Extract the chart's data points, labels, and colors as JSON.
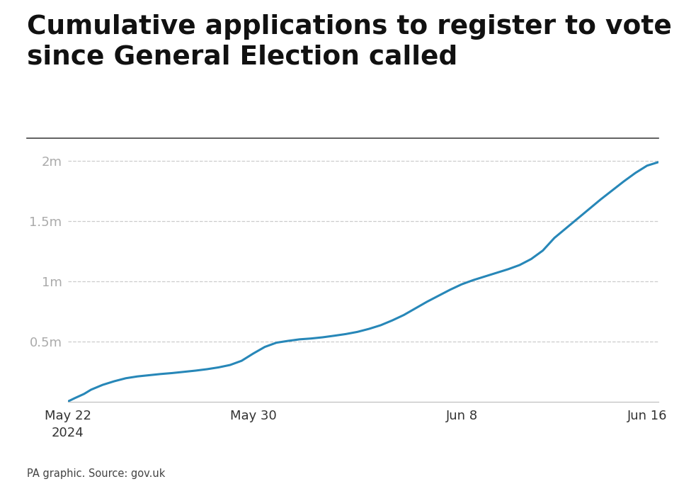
{
  "title": "Cumulative applications to register to vote\nsince General Election called",
  "source_text": "PA graphic. Source: gov.uk",
  "line_color": "#2787b8",
  "background_color": "#ffffff",
  "title_fontsize": 27,
  "title_fontweight": "bold",
  "ytick_labels": [
    "0.5m",
    "1m",
    "1.5m",
    "2m"
  ],
  "ytick_values": [
    500000,
    1000000,
    1500000,
    2000000
  ],
  "ylim": [
    0,
    2150000
  ],
  "xlim": [
    0,
    25.5
  ],
  "x_tick_labels": [
    "May 22\n2024",
    "May 30",
    "Jun 8",
    "Jun 16"
  ],
  "x_tick_positions": [
    0,
    8,
    17,
    25
  ],
  "data_points": [
    [
      0,
      2000
    ],
    [
      0.3,
      30000
    ],
    [
      0.7,
      65000
    ],
    [
      1.0,
      100000
    ],
    [
      1.5,
      140000
    ],
    [
      2.0,
      170000
    ],
    [
      2.5,
      195000
    ],
    [
      3.0,
      210000
    ],
    [
      3.5,
      220000
    ],
    [
      4.0,
      230000
    ],
    [
      4.5,
      238000
    ],
    [
      5.0,
      248000
    ],
    [
      5.5,
      258000
    ],
    [
      6.0,
      270000
    ],
    [
      6.5,
      285000
    ],
    [
      7.0,
      305000
    ],
    [
      7.5,
      340000
    ],
    [
      8.0,
      400000
    ],
    [
      8.5,
      455000
    ],
    [
      9.0,
      490000
    ],
    [
      9.5,
      505000
    ],
    [
      10.0,
      518000
    ],
    [
      10.5,
      525000
    ],
    [
      11.0,
      535000
    ],
    [
      11.5,
      548000
    ],
    [
      12.0,
      562000
    ],
    [
      12.5,
      580000
    ],
    [
      13.0,
      605000
    ],
    [
      13.5,
      635000
    ],
    [
      14.0,
      675000
    ],
    [
      14.5,
      720000
    ],
    [
      15.0,
      775000
    ],
    [
      15.5,
      830000
    ],
    [
      16.0,
      880000
    ],
    [
      16.5,
      930000
    ],
    [
      17.0,
      975000
    ],
    [
      17.5,
      1010000
    ],
    [
      18.0,
      1040000
    ],
    [
      18.5,
      1070000
    ],
    [
      19.0,
      1100000
    ],
    [
      19.5,
      1135000
    ],
    [
      20.0,
      1185000
    ],
    [
      20.5,
      1255000
    ],
    [
      21.0,
      1360000
    ],
    [
      21.5,
      1440000
    ],
    [
      22.0,
      1520000
    ],
    [
      22.5,
      1600000
    ],
    [
      23.0,
      1680000
    ],
    [
      23.5,
      1755000
    ],
    [
      24.0,
      1830000
    ],
    [
      24.5,
      1900000
    ],
    [
      25.0,
      1960000
    ],
    [
      25.5,
      1990000
    ]
  ]
}
